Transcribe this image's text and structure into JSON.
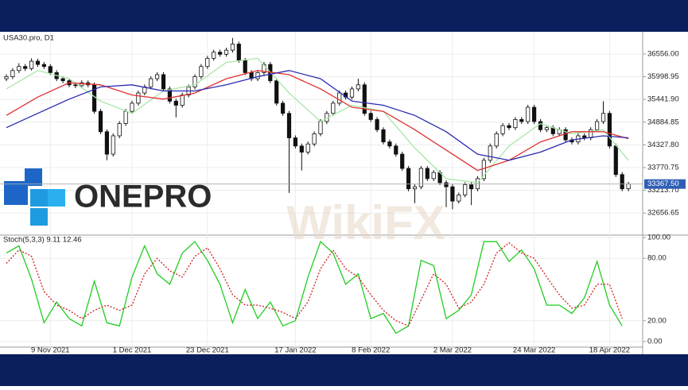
{
  "chart_data": [
    {
      "type": "candlestick",
      "title": "USA30.pro, D1",
      "logo": "ONEPRO",
      "watermark": "WikiFX",
      "categories": [
        null,
        null,
        null,
        null,
        null,
        null,
        null,
        "9 Nov 2021",
        null,
        null,
        null,
        null,
        null,
        null,
        null,
        null,
        null,
        null,
        null,
        null,
        "1 Dec 2021",
        null,
        null,
        null,
        null,
        null,
        null,
        null,
        null,
        null,
        null,
        null,
        "23 Dec 2021",
        null,
        null,
        null,
        null,
        null,
        null,
        null,
        null,
        null,
        null,
        null,
        null,
        null,
        "17 Jan 2022",
        null,
        null,
        null,
        null,
        null,
        null,
        null,
        null,
        null,
        null,
        null,
        "8 Feb 2022",
        null,
        null,
        null,
        null,
        null,
        null,
        null,
        null,
        null,
        null,
        null,
        null,
        "2 Mar 2022",
        null,
        null,
        null,
        null,
        null,
        null,
        null,
        null,
        null,
        null,
        null,
        null,
        "24 Mar 2022",
        null,
        null,
        null,
        null,
        null,
        null,
        null,
        null,
        null,
        null,
        null,
        "18 Apr 2022",
        null,
        null,
        null
      ],
      "ohlc": [
        [
          35950,
          36060,
          35890,
          36000
        ],
        [
          36000,
          36210,
          35940,
          36150
        ],
        [
          36150,
          36330,
          36090,
          36250
        ],
        [
          36250,
          36310,
          36140,
          36200
        ],
        [
          36200,
          36450,
          36150,
          36380
        ],
        [
          36380,
          36440,
          36240,
          36300
        ],
        [
          36300,
          36360,
          36190,
          36250
        ],
        [
          36250,
          36310,
          36040,
          36100
        ],
        [
          36100,
          36160,
          35890,
          35950
        ],
        [
          35950,
          36010,
          35840,
          35900
        ],
        [
          35900,
          35960,
          35740,
          35800
        ],
        [
          35800,
          35860,
          35720,
          35780
        ],
        [
          35780,
          35910,
          35720,
          35850
        ],
        [
          35850,
          35910,
          35740,
          35800
        ],
        [
          35800,
          35860,
          35090,
          35150
        ],
        [
          35150,
          35210,
          34590,
          34650
        ],
        [
          34650,
          34710,
          33950,
          34100
        ],
        [
          34100,
          34610,
          34040,
          34550
        ],
        [
          34550,
          34910,
          34490,
          34850
        ],
        [
          34850,
          35210,
          34790,
          35150
        ],
        [
          35150,
          35410,
          35090,
          35350
        ],
        [
          35350,
          35660,
          35290,
          35600
        ],
        [
          35600,
          35810,
          35540,
          35750
        ],
        [
          35750,
          36010,
          35690,
          35950
        ],
        [
          35950,
          36110,
          35890,
          36050
        ],
        [
          36050,
          36110,
          35640,
          35700
        ],
        [
          35700,
          35760,
          35340,
          35400
        ],
        [
          35400,
          35460,
          35000,
          35300
        ],
        [
          35300,
          35610,
          35240,
          35550
        ],
        [
          35550,
          35810,
          35490,
          35750
        ],
        [
          35750,
          36060,
          35690,
          36000
        ],
        [
          36000,
          36310,
          35940,
          36250
        ],
        [
          36250,
          36510,
          36190,
          36450
        ],
        [
          36450,
          36660,
          36390,
          36600
        ],
        [
          36600,
          36660,
          36490,
          36550
        ],
        [
          36550,
          36710,
          36490,
          36650
        ],
        [
          36650,
          36950,
          36590,
          36800
        ],
        [
          36800,
          36860,
          36340,
          36400
        ],
        [
          36400,
          36460,
          36040,
          36100
        ],
        [
          36100,
          36160,
          35890,
          35950
        ],
        [
          35950,
          36160,
          35890,
          36100
        ],
        [
          36100,
          36360,
          36040,
          36300
        ],
        [
          36300,
          36360,
          35840,
          35900
        ],
        [
          35900,
          35960,
          35290,
          35350
        ],
        [
          35350,
          35410,
          35040,
          35100
        ],
        [
          35100,
          35160,
          33150,
          34500
        ],
        [
          34500,
          34560,
          34240,
          34300
        ],
        [
          34300,
          34360,
          33700,
          34150
        ],
        [
          34150,
          34410,
          34090,
          34350
        ],
        [
          34350,
          34660,
          34290,
          34600
        ],
        [
          34600,
          34960,
          34540,
          34900
        ],
        [
          34900,
          35160,
          34840,
          35100
        ],
        [
          35100,
          35410,
          35040,
          35350
        ],
        [
          35350,
          35660,
          35290,
          35600
        ],
        [
          35600,
          35660,
          35440,
          35500
        ],
        [
          35500,
          35760,
          35440,
          35700
        ],
        [
          35700,
          35950,
          35640,
          35800
        ],
        [
          35800,
          35860,
          35040,
          35100
        ],
        [
          35100,
          35160,
          34890,
          34950
        ],
        [
          34950,
          35010,
          34640,
          34700
        ],
        [
          34700,
          34760,
          34340,
          34400
        ],
        [
          34400,
          34460,
          34240,
          34300
        ],
        [
          34300,
          34360,
          34040,
          34100
        ],
        [
          34100,
          34160,
          33690,
          33750
        ],
        [
          33750,
          33810,
          33190,
          33250
        ],
        [
          33250,
          33360,
          32900,
          33300
        ],
        [
          33300,
          33810,
          33240,
          33750
        ],
        [
          33750,
          33810,
          33440,
          33500
        ],
        [
          33500,
          33710,
          33440,
          33650
        ],
        [
          33650,
          33710,
          33340,
          33400
        ],
        [
          33400,
          33460,
          32800,
          33300
        ],
        [
          33300,
          33360,
          32750,
          32950
        ],
        [
          32950,
          33160,
          32890,
          33100
        ],
        [
          33100,
          33410,
          33040,
          33350
        ],
        [
          33350,
          33410,
          32850,
          33250
        ],
        [
          33250,
          33560,
          33190,
          33500
        ],
        [
          33500,
          34010,
          33440,
          33950
        ],
        [
          33950,
          34360,
          33890,
          34300
        ],
        [
          34300,
          34660,
          34240,
          34600
        ],
        [
          34600,
          34860,
          34540,
          34800
        ],
        [
          34800,
          34860,
          34690,
          34750
        ],
        [
          34750,
          35010,
          34690,
          34950
        ],
        [
          34950,
          35010,
          34840,
          34900
        ],
        [
          34900,
          35310,
          34840,
          35250
        ],
        [
          35250,
          35310,
          34840,
          34900
        ],
        [
          34900,
          34960,
          34640,
          34700
        ],
        [
          34700,
          34810,
          34640,
          34750
        ],
        [
          34750,
          34810,
          34540,
          34600
        ],
        [
          34600,
          34760,
          34540,
          34700
        ],
        [
          34700,
          34760,
          34390,
          34450
        ],
        [
          34450,
          34510,
          34340,
          34400
        ],
        [
          34400,
          34610,
          34340,
          34550
        ],
        [
          34550,
          34610,
          34440,
          34500
        ],
        [
          34500,
          34760,
          34440,
          34700
        ],
        [
          34700,
          34960,
          34640,
          34900
        ],
        [
          34900,
          35400,
          34840,
          35100
        ],
        [
          35100,
          35160,
          34240,
          34300
        ],
        [
          34300,
          34360,
          33540,
          33600
        ],
        [
          33600,
          33660,
          33190,
          33250
        ],
        [
          33250,
          33420,
          33190,
          33367.5
        ]
      ],
      "series": [
        {
          "color": "#a8e6a8",
          "x": [
            0,
            5,
            10,
            15,
            20,
            25,
            30,
            35,
            40,
            45,
            50,
            55,
            60,
            65,
            70,
            75,
            80,
            85,
            90,
            95,
            99
          ],
          "values": [
            35700,
            36150,
            35950,
            35400,
            35100,
            35650,
            35800,
            36350,
            36450,
            35600,
            34900,
            35300,
            35150,
            34250,
            33500,
            33400,
            34300,
            34850,
            34600,
            34700,
            33950
          ]
        },
        {
          "color": "#e03030",
          "x": [
            0,
            5,
            10,
            15,
            20,
            25,
            30,
            35,
            40,
            45,
            50,
            55,
            60,
            65,
            70,
            75,
            80,
            85,
            90,
            95,
            99
          ],
          "values": [
            35050,
            35500,
            35850,
            35800,
            35550,
            35450,
            35600,
            35950,
            36150,
            36050,
            35700,
            35250,
            35150,
            34700,
            34200,
            33700,
            33950,
            34400,
            34650,
            34650,
            34480
          ]
        },
        {
          "color": "#2a2ab0",
          "x": [
            0,
            5,
            10,
            15,
            20,
            25,
            30,
            35,
            40,
            45,
            50,
            55,
            60,
            65,
            70,
            75,
            80,
            85,
            90,
            95,
            99
          ],
          "values": [
            34750,
            35100,
            35450,
            35750,
            35800,
            35650,
            35650,
            35800,
            36000,
            36150,
            35950,
            35400,
            35300,
            35050,
            34650,
            34100,
            33950,
            34150,
            34450,
            34550,
            34500
          ]
        }
      ],
      "last_price": {
        "value": 33367.5,
        "label": "33367.50"
      },
      "ylim": [
        32115,
        37101
      ],
      "yticks": [
        {
          "value": 36556,
          "label": "36556.00"
        },
        {
          "value": 35998.95,
          "label": "35998.95"
        },
        {
          "value": 35441.9,
          "label": "35441.90"
        },
        {
          "value": 34884.85,
          "label": "34884.85"
        },
        {
          "value": 34327.8,
          "label": "34327.80"
        },
        {
          "value": 33770.75,
          "label": "33770.75"
        },
        {
          "value": 33213.7,
          "label": "33213.70"
        },
        {
          "value": 32656.65,
          "label": "32656.65"
        }
      ],
      "grid": true
    },
    {
      "type": "line",
      "title": "Stoch(5,3,3) 9.11 12.46",
      "series": [
        {
          "color": "#22cc22",
          "style": "solid",
          "x": [
            0,
            2,
            4,
            6,
            8,
            10,
            12,
            14,
            16,
            18,
            20,
            22,
            24,
            26,
            28,
            30,
            32,
            34,
            36,
            38,
            40,
            42,
            44,
            46,
            48,
            50,
            52,
            54,
            56,
            58,
            60,
            62,
            64,
            66,
            68,
            70,
            72,
            74,
            76,
            78,
            80,
            82,
            84,
            86,
            88,
            90,
            92,
            94,
            96,
            98
          ],
          "values": [
            85,
            92,
            60,
            18,
            38,
            22,
            15,
            58,
            18,
            15,
            62,
            92,
            65,
            55,
            85,
            96,
            78,
            55,
            18,
            50,
            22,
            38,
            15,
            20,
            62,
            96,
            85,
            55,
            65,
            22,
            27,
            8,
            15,
            78,
            73,
            22,
            30,
            45,
            96,
            96,
            77,
            88,
            70,
            35,
            35,
            27,
            42,
            77,
            35,
            15
          ]
        },
        {
          "color": "#cc2222",
          "style": "dotted",
          "x": [
            0,
            2,
            4,
            6,
            8,
            10,
            12,
            14,
            16,
            18,
            20,
            22,
            24,
            26,
            28,
            30,
            32,
            34,
            36,
            38,
            40,
            42,
            44,
            46,
            48,
            50,
            52,
            54,
            56,
            58,
            60,
            62,
            64,
            66,
            68,
            70,
            72,
            74,
            76,
            78,
            80,
            82,
            84,
            86,
            88,
            90,
            92,
            94,
            96,
            98
          ],
          "values": [
            75,
            88,
            82,
            48,
            35,
            30,
            22,
            30,
            35,
            30,
            35,
            65,
            80,
            68,
            62,
            82,
            90,
            70,
            45,
            35,
            35,
            32,
            28,
            22,
            38,
            70,
            88,
            70,
            62,
            45,
            30,
            20,
            15,
            40,
            65,
            55,
            32,
            38,
            55,
            85,
            95,
            85,
            80,
            62,
            45,
            32,
            35,
            55,
            55,
            22
          ]
        }
      ],
      "ylim": [
        -5.4,
        102.3
      ],
      "yticks": [
        {
          "value": 100,
          "label": "100.00"
        },
        {
          "value": 80,
          "label": "80.00"
        },
        {
          "value": 20,
          "label": "20.00"
        },
        {
          "value": 0,
          "label": "0.00"
        }
      ],
      "grid": true
    }
  ]
}
